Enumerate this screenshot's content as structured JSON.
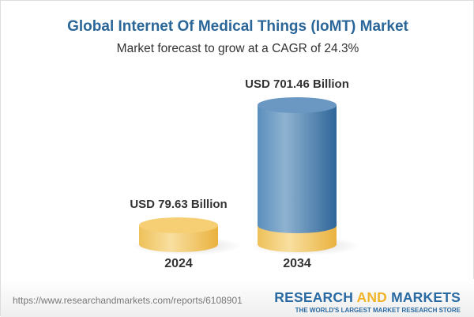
{
  "title": "Global Internet Of Medical Things (IoMT) Market",
  "subtitle": "Market forecast to grow at a CAGR of 24.3%",
  "chart_data": {
    "type": "bar",
    "style": "3d-cylinder",
    "categories": [
      "2024",
      "2034"
    ],
    "values": [
      79.63,
      701.46
    ],
    "data_labels": [
      "USD 79.63 Billion",
      "USD 701.46 Billion"
    ],
    "unit": "USD Billion",
    "colors": {
      "base": "#f2c55c",
      "bar": "#4f86b5"
    }
  },
  "footer": {
    "url": "https://www.researchandmarkets.com/reports/6108901",
    "logo_research": "RESEARCH",
    "logo_and": "AND",
    "logo_markets": "MARKETS",
    "logo_tagline": "THE WORLD'S LARGEST MARKET RESEARCH STORE"
  }
}
